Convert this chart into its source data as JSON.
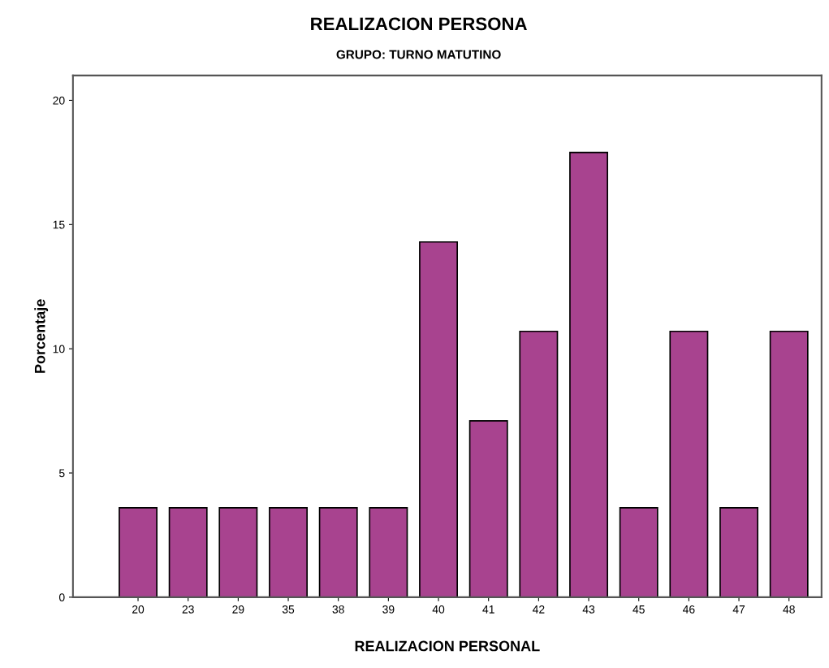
{
  "chart_data": {
    "type": "bar",
    "title": "REALIZACION PERSONA",
    "subtitle": "GRUPO: TURNO MATUTINO",
    "xlabel": "REALIZACION PERSONAL",
    "ylabel": "Porcentaje",
    "categories": [
      "20",
      "23",
      "29",
      "35",
      "38",
      "39",
      "40",
      "41",
      "42",
      "43",
      "45",
      "46",
      "47",
      "48"
    ],
    "values": [
      3.6,
      3.6,
      3.6,
      3.6,
      3.6,
      3.6,
      14.3,
      7.1,
      10.7,
      17.9,
      3.6,
      10.7,
      3.6,
      10.7
    ],
    "color": "#a8438f",
    "ylim": [
      0,
      21
    ],
    "yticks": [
      0,
      5,
      10,
      15,
      20
    ],
    "grid": false
  }
}
